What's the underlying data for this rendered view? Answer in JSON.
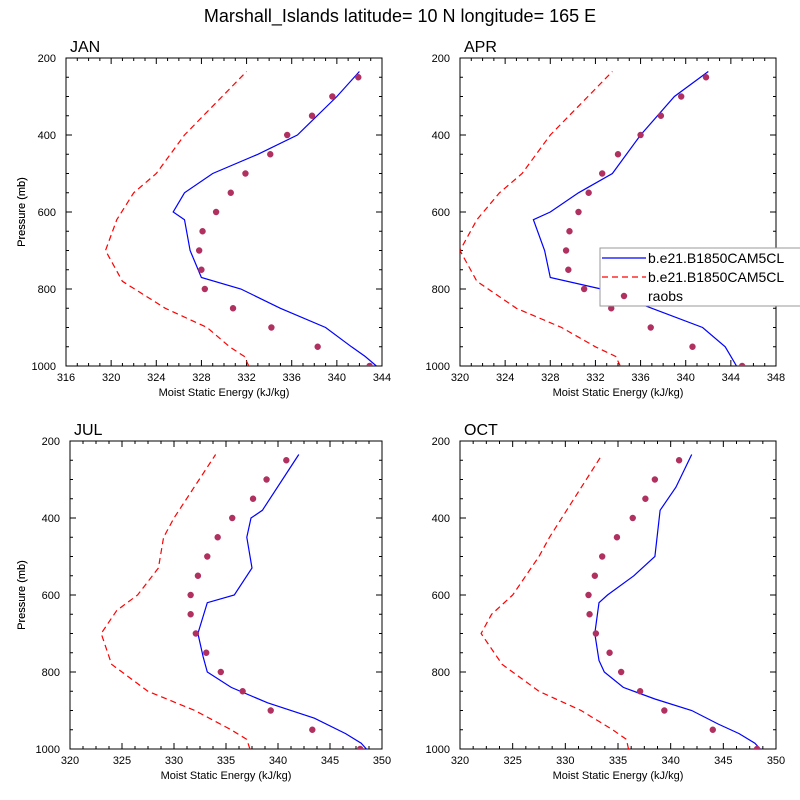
{
  "figure": {
    "title": "Marshall_Islands  latitude= 10 N longitude= 165 E"
  },
  "legend": {
    "entries": [
      {
        "label": "b.e21.B1850CAM5CL",
        "style": "solid",
        "color": "#0000ff"
      },
      {
        "label": "b.e21.B1850CAM5CL",
        "style": "dashed",
        "color": "#ff0000"
      },
      {
        "label": "raobs",
        "style": "marker",
        "color": "#b03060"
      }
    ]
  },
  "colors": {
    "model_solid": "#0000ff",
    "model_dashed": "#ff0000",
    "raobs": "#b03060"
  },
  "chart_data": [
    {
      "type": "line",
      "panel": "JAN",
      "xlabel": "Moist Static Energy (kJ/kg)",
      "ylabel": "Pressure (mb)",
      "xlim": [
        316,
        344
      ],
      "ylim": [
        1000,
        200
      ],
      "y_reversed": true,
      "xticks": [
        316,
        320,
        324,
        328,
        332,
        336,
        340,
        344
      ],
      "yticks": [
        200,
        400,
        600,
        800,
        1000
      ],
      "series": [
        {
          "style": "solid",
          "color": "#0000ff",
          "x": [
            343.5,
            342.5,
            341.3,
            339.0,
            335.0,
            331.5,
            328.0,
            327.0,
            326.5,
            325.5,
            326.5,
            329.0,
            333.0,
            336.5,
            340.0,
            342.0
          ],
          "y": [
            1000,
            975,
            950,
            900,
            850,
            800,
            770,
            700,
            620,
            600,
            550,
            500,
            450,
            400,
            300,
            235
          ]
        },
        {
          "style": "dashed",
          "color": "#ff0000",
          "x": [
            332.2,
            331.8,
            330.5,
            328.5,
            324.8,
            321.0,
            319.5,
            320.5,
            322.0,
            324.0,
            326.5,
            332.0
          ],
          "y": [
            1000,
            975,
            950,
            900,
            850,
            780,
            700,
            620,
            550,
            500,
            400,
            235
          ]
        },
        {
          "style": "marker",
          "color": "#b03060",
          "x": [
            342.9,
            338.3,
            334.2,
            330.8,
            328.3,
            328.0,
            327.8,
            328.1,
            329.3,
            330.6,
            331.9,
            334.1,
            335.6,
            337.8,
            339.6,
            341.9
          ],
          "y": [
            1000,
            950,
            900,
            850,
            800,
            750,
            700,
            650,
            600,
            550,
            500,
            450,
            400,
            350,
            300,
            250
          ]
        }
      ]
    },
    {
      "type": "line",
      "panel": "APR",
      "xlabel": "Moist Static Energy (kJ/kg)",
      "ylabel": "Pressure (mb)",
      "xlim": [
        320,
        348
      ],
      "ylim": [
        1000,
        200
      ],
      "y_reversed": true,
      "xticks": [
        320,
        324,
        328,
        332,
        336,
        340,
        344,
        348
      ],
      "yticks": [
        200,
        400,
        600,
        800,
        1000
      ],
      "series": [
        {
          "style": "solid",
          "color": "#0000ff",
          "x": [
            344.5,
            344.0,
            343.5,
            341.5,
            337.0,
            332.5,
            328.0,
            327.5,
            326.5,
            328.0,
            330.5,
            333.5,
            336.0,
            339.0,
            342.0
          ],
          "y": [
            1000,
            975,
            950,
            900,
            850,
            800,
            770,
            700,
            620,
            600,
            550,
            500,
            400,
            300,
            235
          ]
        },
        {
          "style": "dashed",
          "color": "#ff0000",
          "x": [
            334.2,
            333.8,
            332.0,
            329.0,
            325.0,
            321.5,
            320.0,
            321.5,
            323.5,
            325.5,
            328.0,
            333.5
          ],
          "y": [
            1000,
            975,
            950,
            900,
            850,
            780,
            700,
            620,
            550,
            500,
            400,
            235
          ]
        },
        {
          "style": "marker",
          "color": "#b03060",
          "x": [
            345.0,
            340.6,
            336.9,
            333.4,
            331.0,
            329.6,
            329.4,
            329.7,
            330.5,
            331.4,
            332.6,
            334.0,
            336.0,
            337.8,
            339.6,
            341.8
          ],
          "y": [
            1000,
            950,
            900,
            850,
            800,
            750,
            700,
            650,
            600,
            550,
            500,
            450,
            400,
            350,
            300,
            250
          ]
        }
      ]
    },
    {
      "type": "line",
      "panel": "JUL",
      "xlabel": "Moist Static Energy (kJ/kg)",
      "ylabel": "Pressure (mb)",
      "xlim": [
        320,
        350
      ],
      "ylim": [
        1000,
        200
      ],
      "y_reversed": true,
      "xticks": [
        320,
        325,
        330,
        335,
        340,
        345,
        350
      ],
      "yticks": [
        200,
        400,
        600,
        800,
        1000
      ],
      "series": [
        {
          "style": "solid",
          "color": "#0000ff",
          "x": [
            348.5,
            348.0,
            346.5,
            343.5,
            339.0,
            335.5,
            333.2,
            332.8,
            332.3,
            333.2,
            335.8,
            337.5,
            337.0,
            337.4,
            338.5,
            342.0
          ],
          "y": [
            1000,
            985,
            960,
            920,
            880,
            840,
            800,
            760,
            700,
            620,
            600,
            530,
            450,
            400,
            380,
            235
          ]
        },
        {
          "style": "dashed",
          "color": "#ff0000",
          "x": [
            337.3,
            337.0,
            335.5,
            332.0,
            327.5,
            324.0,
            323.0,
            324.5,
            326.5,
            328.5,
            329.0,
            330.0,
            334.0
          ],
          "y": [
            1000,
            975,
            950,
            900,
            850,
            780,
            700,
            640,
            600,
            530,
            450,
            400,
            235
          ]
        },
        {
          "style": "marker",
          "color": "#b03060",
          "x": [
            347.9,
            343.3,
            339.3,
            336.6,
            334.5,
            333.1,
            332.1,
            331.6,
            331.6,
            332.3,
            333.2,
            334.2,
            335.6,
            337.6,
            338.9,
            340.8
          ],
          "y": [
            1000,
            950,
            900,
            850,
            800,
            750,
            700,
            650,
            600,
            550,
            500,
            450,
            400,
            350,
            300,
            250
          ]
        }
      ]
    },
    {
      "type": "line",
      "panel": "OCT",
      "xlabel": "Moist Static Energy (kJ/kg)",
      "ylabel": "Pressure (mb)",
      "xlim": [
        320,
        350
      ],
      "ylim": [
        1000,
        200
      ],
      "y_reversed": true,
      "xticks": [
        320,
        325,
        330,
        335,
        340,
        345,
        350
      ],
      "yticks": [
        200,
        400,
        600,
        800,
        1000
      ],
      "series": [
        {
          "style": "solid",
          "color": "#0000ff",
          "x": [
            348.5,
            348.0,
            346.5,
            344.5,
            342.0,
            338.5,
            335.5,
            333.7,
            333.2,
            332.8,
            333.2,
            334.0,
            336.5,
            338.5,
            339.0,
            340.5,
            342.0
          ],
          "y": [
            1000,
            985,
            960,
            935,
            900,
            870,
            840,
            800,
            770,
            700,
            620,
            600,
            550,
            500,
            380,
            320,
            235
          ]
        },
        {
          "style": "dashed",
          "color": "#ff0000",
          "x": [
            336.0,
            335.8,
            334.5,
            331.5,
            327.5,
            324.0,
            322.0,
            323.0,
            325.0,
            326.0,
            327.5,
            328.5,
            333.5
          ],
          "y": [
            1000,
            975,
            950,
            900,
            850,
            780,
            700,
            650,
            600,
            560,
            500,
            450,
            235
          ]
        },
        {
          "style": "marker",
          "color": "#b03060",
          "x": [
            348.2,
            344.0,
            339.4,
            337.1,
            335.3,
            334.2,
            332.9,
            332.3,
            332.2,
            332.8,
            333.5,
            334.9,
            336.4,
            337.6,
            338.5,
            340.8
          ],
          "y": [
            1000,
            950,
            900,
            850,
            800,
            750,
            700,
            650,
            600,
            550,
            500,
            450,
            400,
            350,
            300,
            250
          ]
        }
      ]
    }
  ]
}
